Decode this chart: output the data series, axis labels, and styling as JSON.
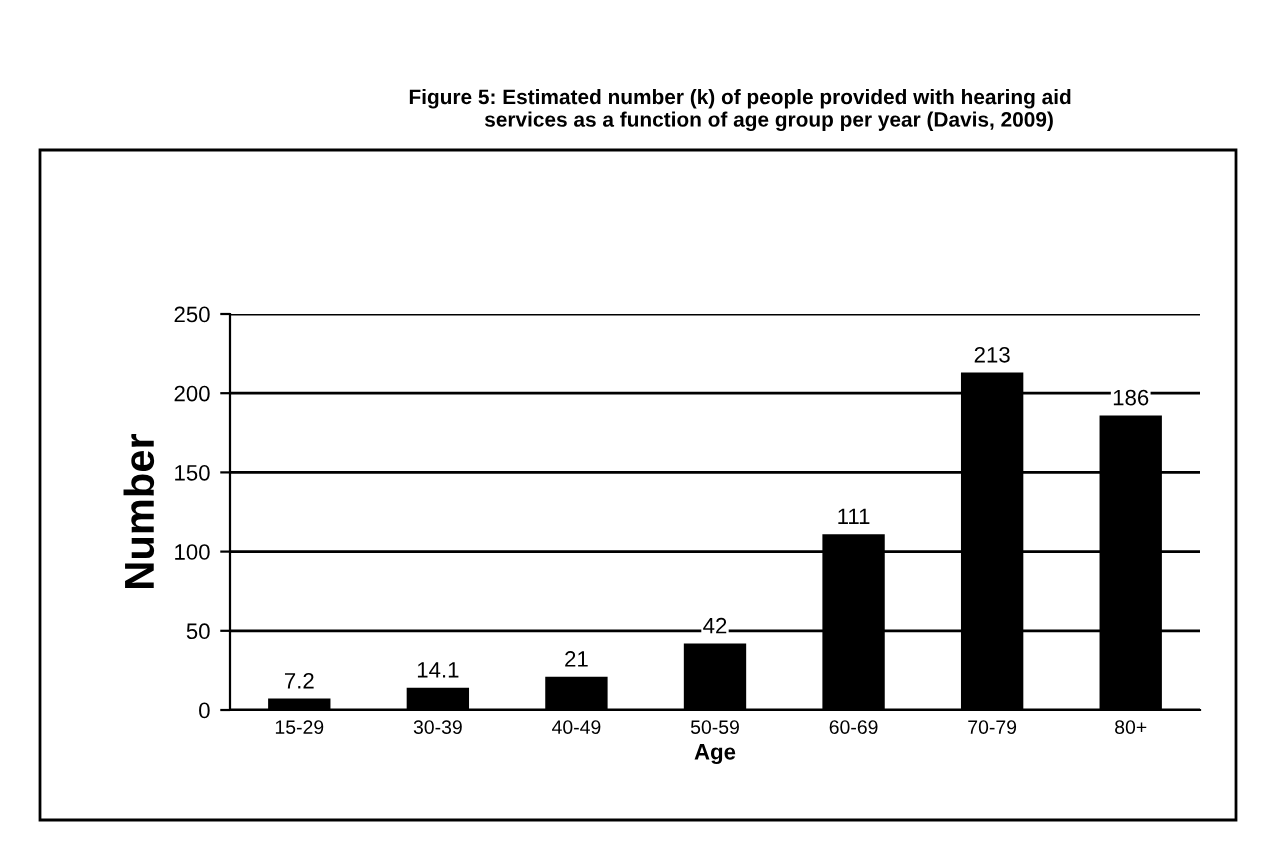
{
  "chart_data": {
    "type": "bar",
    "title": "Figure 5: Estimated number (k) of people provided with hearing aid\n          services as a function of age group per year (Davis, 2009)",
    "xlabel": "Age",
    "ylabel": "Number",
    "categories": [
      "15-29",
      "30-39",
      "40-49",
      "50-59",
      "60-69",
      "70-79",
      "80+"
    ],
    "values": [
      7.2,
      14.1,
      21,
      42,
      111,
      213,
      186
    ],
    "color": "#000000",
    "ylim": [
      0,
      250
    ],
    "yticks": [
      0,
      50,
      100,
      150,
      200,
      250
    ],
    "grid": "y",
    "data_labels": true,
    "legend": false
  }
}
